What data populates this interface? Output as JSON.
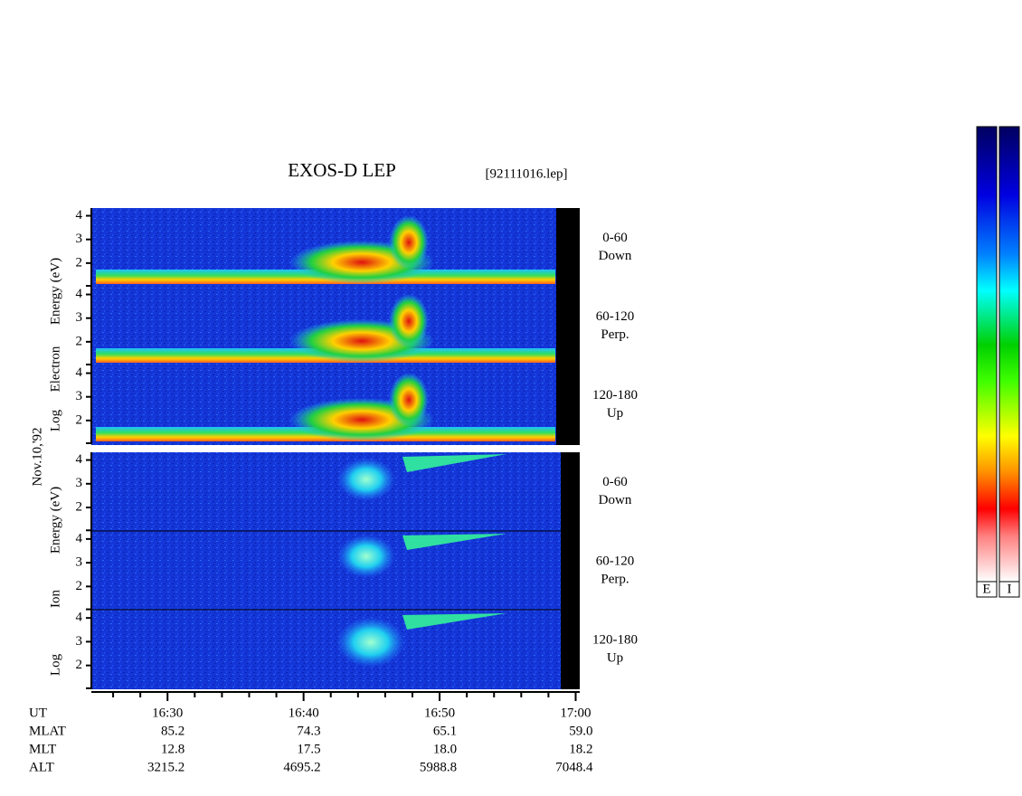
{
  "header": {
    "title": "EXOS-D LEP",
    "file": "[92111016.lep]"
  },
  "date": "Nov.10,'92",
  "groups": [
    {
      "label_parts": [
        "Log",
        "Electron",
        "Energy (eV)"
      ],
      "panels": [
        {
          "angle": "0-60",
          "direction": "Down"
        },
        {
          "angle": "60-120",
          "direction": "Perp."
        },
        {
          "angle": "120-180",
          "direction": "Up"
        }
      ],
      "ylim": [
        1,
        4.25
      ],
      "yticks": [
        2,
        3,
        4
      ]
    },
    {
      "label_parts": [
        "Log",
        "Ion",
        "Energy (eV)"
      ],
      "panels": [
        {
          "angle": "0-60",
          "direction": "Down"
        },
        {
          "angle": "60-120",
          "direction": "Perp."
        },
        {
          "angle": "120-180",
          "direction": "Up"
        }
      ],
      "ylim": [
        1,
        4.25
      ],
      "yticks": [
        2,
        3,
        4
      ]
    }
  ],
  "time_axis": {
    "xlim": [
      984.4,
      1020.3
    ],
    "xticks": [
      {
        "value": 990,
        "label": "16:30"
      },
      {
        "value": 1000,
        "label": "16:40"
      },
      {
        "value": 1010,
        "label": "16:50"
      },
      {
        "value": 1020,
        "label": "17:00"
      }
    ],
    "xminor": [
      986,
      988,
      992,
      994,
      996,
      998,
      1002,
      1004,
      1006,
      1008,
      1012,
      1014,
      1016,
      1018
    ]
  },
  "orbit": {
    "ut_label": "UT",
    "rows": [
      {
        "label": "MLAT",
        "values": [
          "85.2",
          "74.3",
          "65.1",
          "59.0"
        ]
      },
      {
        "label": "MLT",
        "values": [
          "12.8",
          "17.5",
          "18.0",
          "18.2"
        ]
      },
      {
        "label": "ALT",
        "values": [
          "3215.2",
          "4695.2",
          "5988.8",
          "7048.4"
        ]
      }
    ]
  },
  "colorbar": {
    "labels": [
      "E",
      "I"
    ]
  }
}
